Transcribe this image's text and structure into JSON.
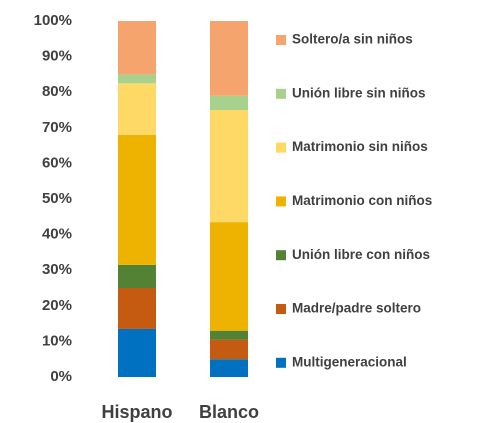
{
  "chart_data": {
    "type": "stacked_bar",
    "categories": [
      "Hispano",
      "Blanco"
    ],
    "series": [
      {
        "name": "Multigeneracional",
        "color": "#0070c0",
        "values": [
          13.5,
          5
        ]
      },
      {
        "name": "Madre/padre soltero",
        "color": "#c55a11",
        "values": [
          11.5,
          5.5
        ]
      },
      {
        "name": "Unión libre con niños",
        "color": "#548235",
        "values": [
          6.5,
          2.5
        ]
      },
      {
        "name": "Matrimonio con niños",
        "color": "#edb300",
        "values": [
          36.5,
          30.5
        ]
      },
      {
        "name": "Matrimonio sin niños",
        "color": "#ffd966",
        "values": [
          14.5,
          31.5
        ]
      },
      {
        "name": "Unión libre sin niños",
        "color": "#a9d18e",
        "values": [
          2.5,
          4
        ]
      },
      {
        "name": "Soltero/a sin niños",
        "color": "#f4a46c",
        "values": [
          15,
          21
        ]
      }
    ],
    "ylim": [
      0,
      100
    ],
    "yticks": [
      {
        "value": 0,
        "label": "0%"
      },
      {
        "value": 10,
        "label": "10%"
      },
      {
        "value": 20,
        "label": "20%"
      },
      {
        "value": 30,
        "label": "30%"
      },
      {
        "value": 40,
        "label": "40%"
      },
      {
        "value": 50,
        "label": "50%"
      },
      {
        "value": 60,
        "label": "60%"
      },
      {
        "value": 70,
        "label": "70%"
      },
      {
        "value": 80,
        "label": "80%"
      },
      {
        "value": 90,
        "label": "90%"
      },
      {
        "value": 100,
        "label": "100%"
      }
    ],
    "legend": "right"
  }
}
